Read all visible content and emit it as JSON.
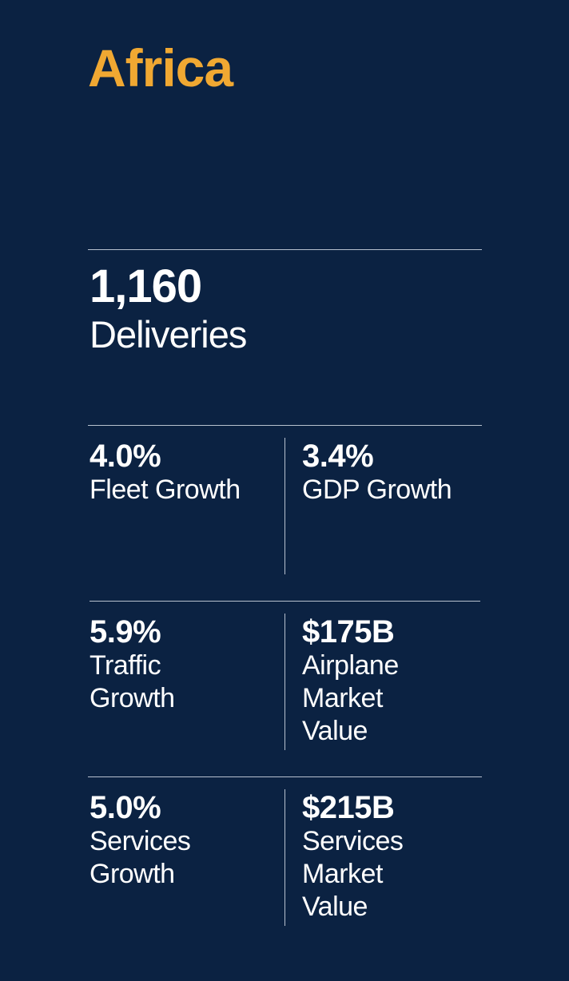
{
  "region": "Africa",
  "deliveries": {
    "value": "1,160",
    "label": "Deliveries"
  },
  "stats": [
    {
      "value": "4.0%",
      "label": "Fleet Growth"
    },
    {
      "value": "3.4%",
      "label": "GDP Growth"
    },
    {
      "value": "5.9%",
      "label": "Traffic Growth"
    },
    {
      "value": "$175B",
      "label": "Airplane Market Value"
    },
    {
      "value": "5.0%",
      "label": "Services Growth"
    },
    {
      "value": "$215B",
      "label": "Services Market Value"
    }
  ],
  "colors": {
    "background": "#0b2242",
    "accent": "#f0a832",
    "text": "#ffffff"
  }
}
